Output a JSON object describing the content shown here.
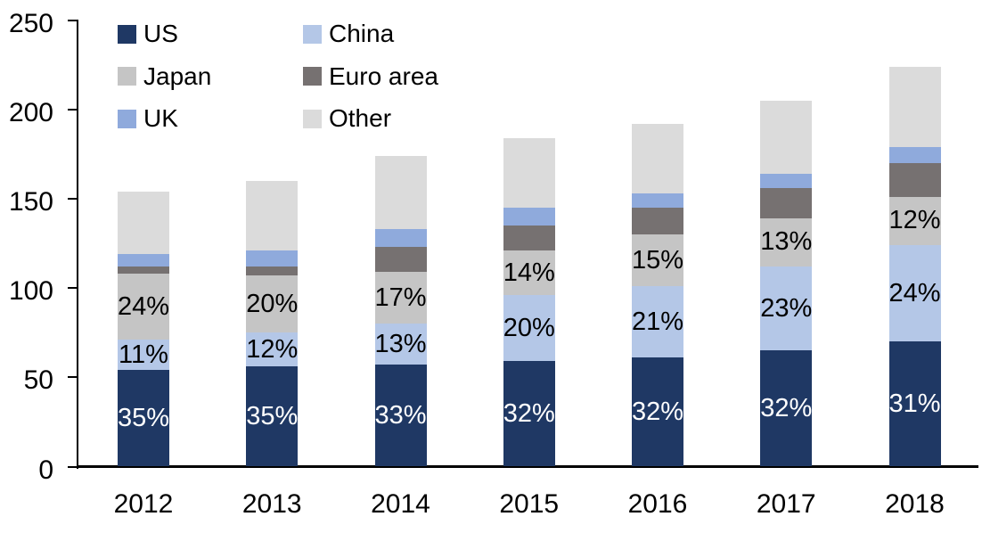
{
  "chart_data": {
    "type": "bar",
    "stacked": true,
    "title": "",
    "xlabel": "",
    "ylabel": "",
    "grid": false,
    "background_color": "#FFFFFF",
    "axis_color": "#000000",
    "categories": [
      "2012",
      "2013",
      "2014",
      "2015",
      "2016",
      "2017",
      "2018"
    ],
    "series": [
      {
        "name": "US",
        "color": "#1F3864",
        "values": [
          54,
          56,
          57,
          59,
          61,
          65,
          70
        ],
        "labels": [
          "35%",
          "35%",
          "33%",
          "32%",
          "32%",
          "32%",
          "31%"
        ],
        "label_color": "#FFFFFF"
      },
      {
        "name": "China",
        "color": "#B4C7E7",
        "values": [
          17,
          19,
          23,
          37,
          40,
          47,
          54
        ],
        "labels": [
          "11%",
          "12%",
          "13%",
          "20%",
          "21%",
          "23%",
          "24%"
        ],
        "label_color": "#000000"
      },
      {
        "name": "Japan",
        "color": "#C5C5C5",
        "values": [
          37,
          32,
          29,
          25,
          29,
          27,
          27
        ],
        "labels": [
          "24%",
          "20%",
          "17%",
          "14%",
          "15%",
          "13%",
          "12%"
        ],
        "label_color": "#000000"
      },
      {
        "name": "Euro area",
        "color": "#767171",
        "values": [
          4,
          5,
          14,
          14,
          15,
          17,
          19
        ],
        "labels": null,
        "label_color": null
      },
      {
        "name": "UK",
        "color": "#8FAADC",
        "values": [
          7,
          9,
          10,
          10,
          8,
          8,
          9
        ],
        "labels": null,
        "label_color": null
      },
      {
        "name": "Other",
        "color": "#DBDBDB",
        "values": [
          35,
          39,
          41,
          39,
          39,
          41,
          45
        ],
        "labels": null,
        "label_color": null
      }
    ],
    "totals": [
      154,
      160,
      174,
      184,
      192,
      205,
      224
    ],
    "y_axis": {
      "min": 0,
      "max": 250,
      "step": 50,
      "tick_labels": [
        "0",
        "50",
        "100",
        "150",
        "200",
        "250"
      ]
    },
    "legend": {
      "position": "top-left",
      "columns": 2,
      "entries": [
        "US",
        "China",
        "Japan",
        "Euro area",
        "UK",
        "Other"
      ]
    }
  }
}
